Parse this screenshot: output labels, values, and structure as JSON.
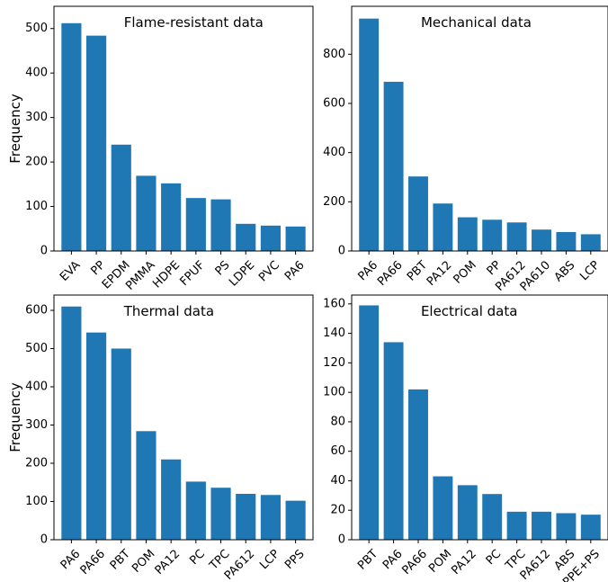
{
  "chart_data": [
    {
      "type": "bar",
      "title": "Flame-resistant data",
      "ylabel": "Frequency",
      "xlabel": "",
      "categories": [
        "EVA",
        "PP",
        "EPDM",
        "PMMA",
        "HDPE",
        "FPUF",
        "PS",
        "LDPE",
        "PVC",
        "PA6"
      ],
      "values": [
        512,
        484,
        239,
        169,
        152,
        119,
        116,
        61,
        57,
        55
      ],
      "ylim": [
        0,
        550
      ],
      "yticks": [
        0,
        100,
        200,
        300,
        400,
        500
      ],
      "color": "#1f77b4",
      "grid": false
    },
    {
      "type": "bar",
      "title": "Mechanical data",
      "ylabel": "",
      "xlabel": "",
      "categories": [
        "PA6",
        "PA66",
        "PBT",
        "PA12",
        "POM",
        "PP",
        "PA612",
        "PA610",
        "ABS",
        "LCP"
      ],
      "values": [
        945,
        688,
        303,
        193,
        137,
        127,
        116,
        87,
        77,
        68
      ],
      "ylim": [
        0,
        995
      ],
      "yticks": [
        0,
        200,
        400,
        600,
        800
      ],
      "color": "#1f77b4",
      "grid": false
    },
    {
      "type": "bar",
      "title": "Thermal data",
      "ylabel": "Frequency",
      "xlabel": "",
      "categories": [
        "PA6",
        "PA66",
        "PBT",
        "POM",
        "PA12",
        "PC",
        "TPC",
        "PA612",
        "LCP",
        "PPS"
      ],
      "values": [
        610,
        542,
        500,
        284,
        210,
        152,
        136,
        120,
        117,
        102
      ],
      "ylim": [
        0,
        640
      ],
      "yticks": [
        0,
        100,
        200,
        300,
        400,
        500,
        600
      ],
      "color": "#1f77b4",
      "grid": false
    },
    {
      "type": "bar",
      "title": "Electrical data",
      "ylabel": "",
      "xlabel": "",
      "categories": [
        "PBT",
        "PA6",
        "PA66",
        "POM",
        "PA12",
        "PC",
        "TPC",
        "PA612",
        "ABS",
        "PPE+PS"
      ],
      "values": [
        159,
        134,
        102,
        43,
        37,
        31,
        19,
        19,
        18,
        17
      ],
      "ylim": [
        0,
        166
      ],
      "yticks": [
        0,
        20,
        40,
        60,
        80,
        100,
        120,
        140,
        160
      ],
      "color": "#1f77b4",
      "grid": false
    }
  ]
}
